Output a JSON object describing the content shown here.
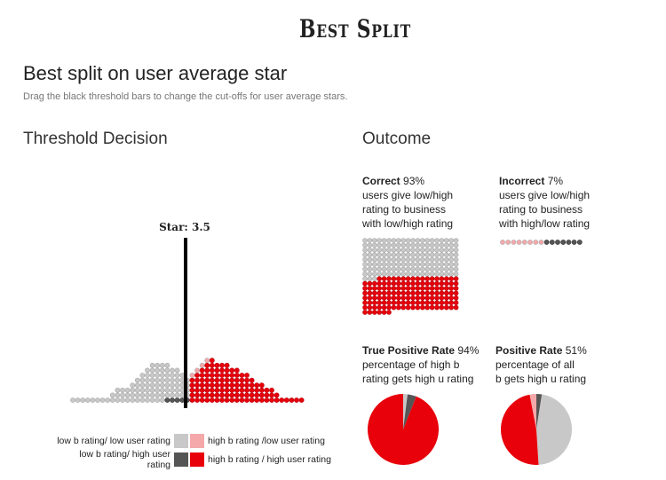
{
  "app_title": "Best Split",
  "page_title": "Best split on user average star",
  "page_subtitle": "Drag the black threshold bars to change the cut-offs for user average stars.",
  "threshold": {
    "heading": "Threshold Decision",
    "label": "Star: 3.5",
    "value": 3.5
  },
  "outcome": {
    "heading": "Outcome",
    "correct": {
      "label": "Correct",
      "pct": "93%",
      "line1": "users give low/high",
      "line2": "rating to business",
      "line3": "with low/high rating"
    },
    "incorrect": {
      "label": "Incorrect",
      "pct": "7%",
      "line1": "users give low/high",
      "line2": "rating to business",
      "line3": "with high/low rating"
    },
    "tpr": {
      "label": "True Positive Rate",
      "pct": "94%",
      "line1": "percentage of high b",
      "line2": "rating gets high u rating",
      "value": 0.94
    },
    "pr": {
      "label": "Positive Rate",
      "pct": "51%",
      "line1": "percentage of all",
      "line2": "b gets high u rating",
      "value": 0.51
    }
  },
  "legend": {
    "low_low": "low b rating/ low user rating",
    "high_low": "high b rating /low user rating",
    "low_high": "low b rating/ high user rating",
    "high_high": "high b rating / high user rating"
  },
  "colors": {
    "low_low": "#c8c8c8",
    "high_low": "#f4a8aa",
    "low_high": "#555555",
    "high_high": "#e8000b"
  }
}
